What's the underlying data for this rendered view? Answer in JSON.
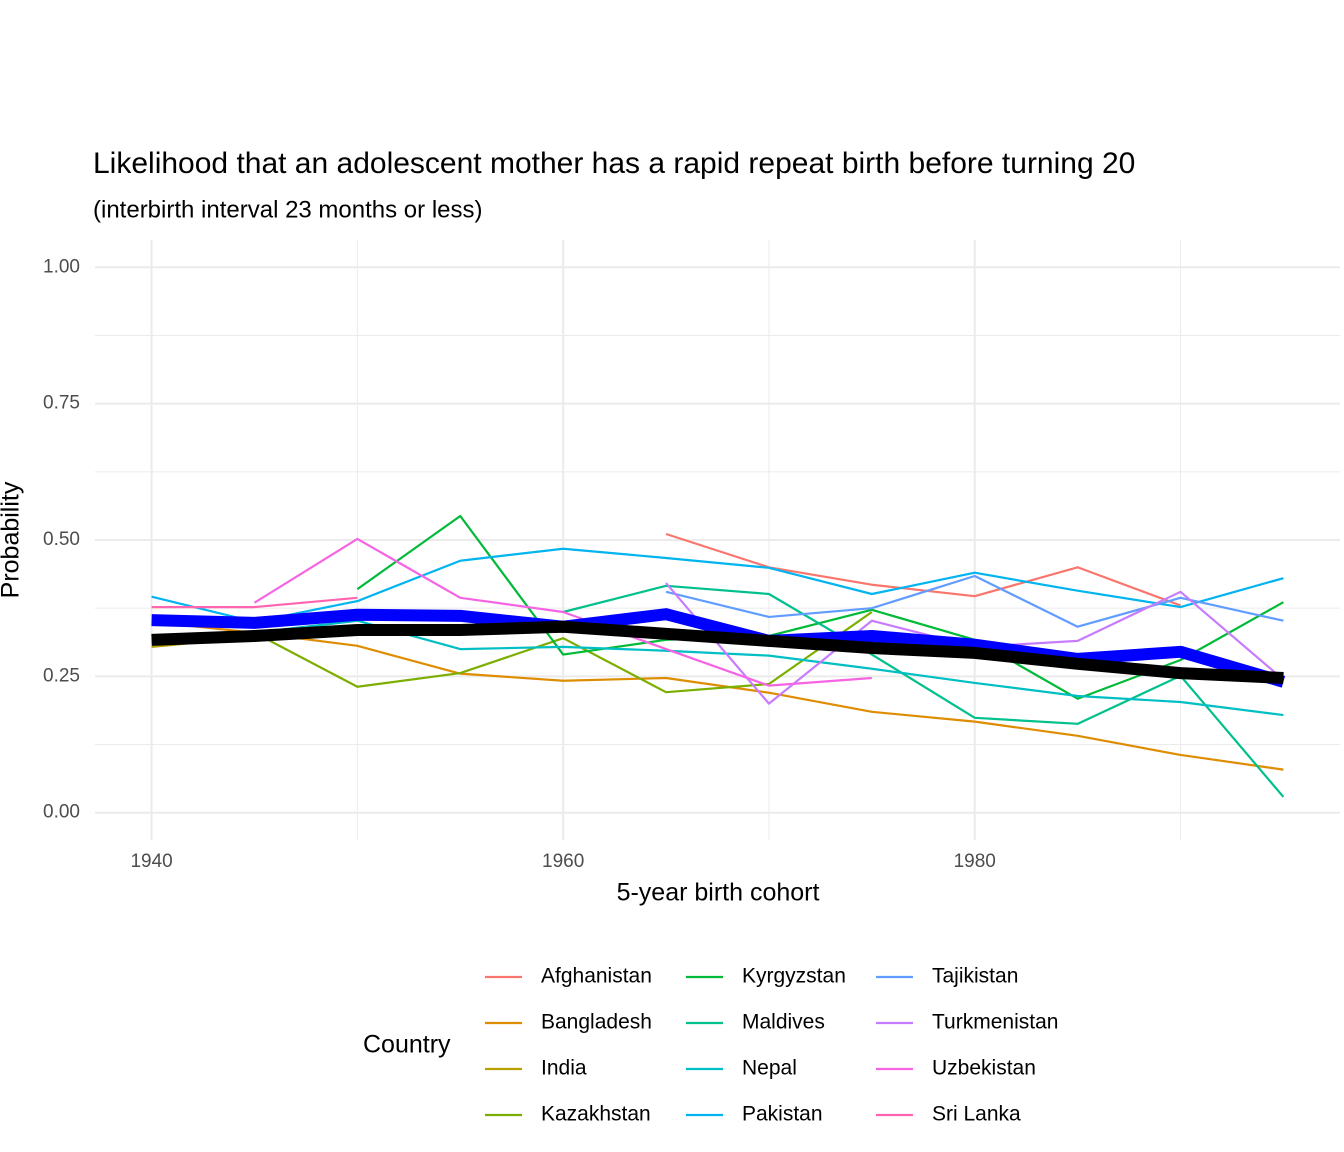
{
  "chart_data": {
    "type": "line",
    "title": "Likelihood that an adolescent mother has a rapid repeat birth before turning 20",
    "subtitle": "(interbirth interval 23 months or less)",
    "x_label": "5-year birth cohort",
    "y_label": "Probability",
    "legend_title": "Country",
    "x": [
      1940,
      1945,
      1950,
      1955,
      1960,
      1965,
      1970,
      1975,
      1980,
      1985,
      1990,
      1995
    ],
    "xlim": [
      1937.25,
      1997.75
    ],
    "xticks": [
      1940,
      1960,
      1980
    ],
    "xminor": [
      1950,
      1970,
      1990
    ],
    "ylim": [
      -0.05,
      1.05
    ],
    "yticks": [
      {
        "value": 0,
        "label": "0.00"
      },
      {
        "value": 0.25,
        "label": "0.25"
      },
      {
        "value": 0.5,
        "label": "0.50"
      },
      {
        "value": 0.75,
        "label": "0.75"
      },
      {
        "value": 1,
        "label": "1.00"
      }
    ],
    "yminor": [
      0.125,
      0.375,
      0.625,
      0.875
    ],
    "grid": true,
    "legend": "bottom",
    "series": [
      {
        "name": "Afghanistan",
        "color": "#F8766D",
        "values": [
          null,
          null,
          null,
          null,
          null,
          0.511,
          0.45,
          0.418,
          0.397,
          0.45,
          0.38,
          null
        ]
      },
      {
        "name": "Bangladesh",
        "color": "#DE8C00",
        "values": [
          0.35,
          0.33,
          0.306,
          0.255,
          0.242,
          0.247,
          0.22,
          0.185,
          0.167,
          0.141,
          0.106,
          0.079
        ]
      },
      {
        "name": "India",
        "color": "#B79F00",
        "values": [
          0.304,
          0.322,
          null,
          null,
          null,
          null,
          null,
          null,
          null,
          null,
          null,
          null
        ]
      },
      {
        "name": "Kazakhstan",
        "color": "#7CAE00",
        "values": [
          null,
          0.33,
          0.231,
          0.256,
          0.32,
          0.221,
          0.236,
          0.368,
          null,
          null,
          null,
          null
        ]
      },
      {
        "name": "Kyrgyzstan",
        "color": "#00BA38",
        "values": [
          null,
          null,
          0.41,
          0.544,
          0.29,
          0.317,
          0.324,
          0.372,
          0.317,
          0.209,
          0.28,
          0.386
        ]
      },
      {
        "name": "Maldives",
        "color": "#00C08B",
        "values": [
          null,
          null,
          null,
          null,
          0.368,
          0.416,
          0.401,
          0.29,
          0.174,
          0.163,
          0.251,
          0.029
        ]
      },
      {
        "name": "Nepal",
        "color": "#00BFC4",
        "values": [
          null,
          0.33,
          0.352,
          0.3,
          0.304,
          0.297,
          0.288,
          0.264,
          0.238,
          0.214,
          0.203,
          0.179
        ]
      },
      {
        "name": "Pakistan",
        "color": "#00B4F0",
        "values": [
          0.396,
          0.35,
          0.388,
          0.462,
          0.484,
          0.467,
          0.449,
          0.401,
          0.44,
          0.407,
          0.377,
          0.43
        ]
      },
      {
        "name": "Tajikistan",
        "color": "#619CFF",
        "values": [
          null,
          null,
          null,
          null,
          null,
          0.405,
          0.359,
          0.375,
          0.434,
          0.341,
          0.394,
          0.352
        ]
      },
      {
        "name": "Turkmenistan",
        "color": "#C77CFF",
        "values": [
          null,
          null,
          null,
          null,
          null,
          0.421,
          0.2,
          0.352,
          0.304,
          0.315,
          0.405,
          0.244
        ]
      },
      {
        "name": "Uzbekistan",
        "color": "#F564E3",
        "values": [
          null,
          0.385,
          0.502,
          0.394,
          0.368,
          0.3,
          0.233,
          0.247,
          null,
          null,
          null,
          null
        ]
      },
      {
        "name": "Sri Lanka",
        "color": "#FF64B0",
        "values": [
          0.377,
          0.377,
          0.394,
          null,
          null,
          null,
          null,
          null,
          null,
          null,
          null,
          null
        ]
      },
      {
        "color": "#0000FF",
        "width": 12,
        "values": [
          0.353,
          0.348,
          0.363,
          0.361,
          0.341,
          0.364,
          0.315,
          0.324,
          0.308,
          0.282,
          0.295,
          0.24
        ]
      },
      {
        "color": "#000000",
        "width": 12,
        "values": [
          0.317,
          0.324,
          0.335,
          0.335,
          0.341,
          0.328,
          0.315,
          0.302,
          0.293,
          0.273,
          0.256,
          0.247
        ]
      }
    ]
  }
}
